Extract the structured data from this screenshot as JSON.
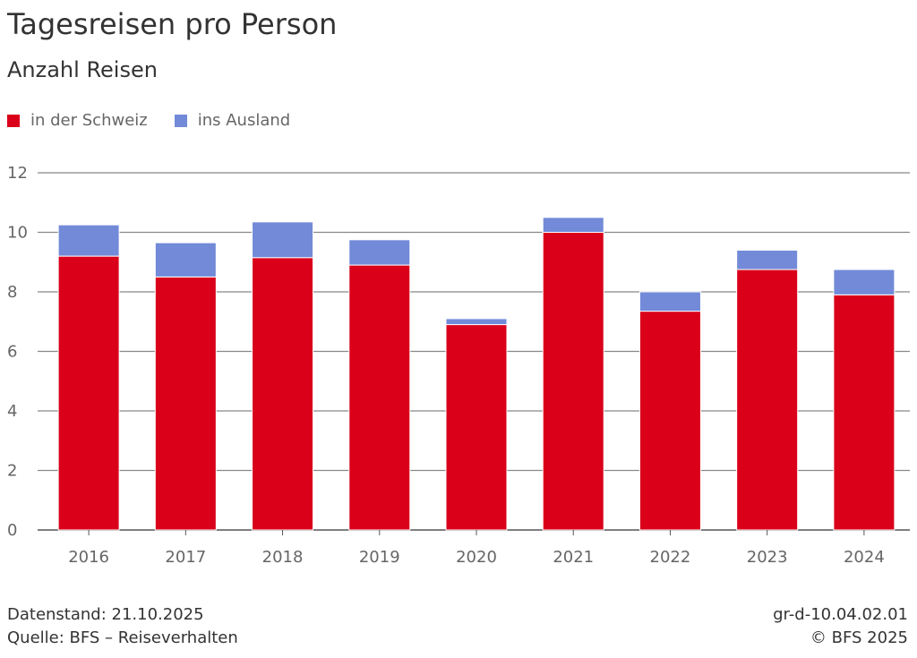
{
  "chart_data": {
    "type": "bar",
    "stacked": true,
    "title": "Tagesreisen pro Person",
    "subtitle": "Anzahl Reisen",
    "categories": [
      "2016",
      "2017",
      "2018",
      "2019",
      "2020",
      "2021",
      "2022",
      "2023",
      "2024"
    ],
    "series": [
      {
        "name": "in der Schweiz",
        "color": "#da001a",
        "values": [
          9.2,
          8.5,
          9.15,
          8.9,
          6.9,
          10.0,
          7.35,
          8.75,
          7.9
        ]
      },
      {
        "name": "ins Ausland",
        "color": "#728ad8",
        "values": [
          1.05,
          1.15,
          1.2,
          0.85,
          0.2,
          0.5,
          0.65,
          0.65,
          0.85
        ]
      }
    ],
    "ylim": [
      0,
      12
    ],
    "yticks": [
      "0",
      "2",
      "4",
      "6",
      "8",
      "10",
      "12"
    ],
    "grid": true,
    "legend": "top-left",
    "xlabel": "",
    "ylabel": ""
  },
  "footer": {
    "date": "Datenstand: 21.10.2025",
    "source": "Quelle: BFS – Reiseverhalten",
    "code": "gr-d-10.04.02.01",
    "copyright": "© BFS 2025"
  }
}
